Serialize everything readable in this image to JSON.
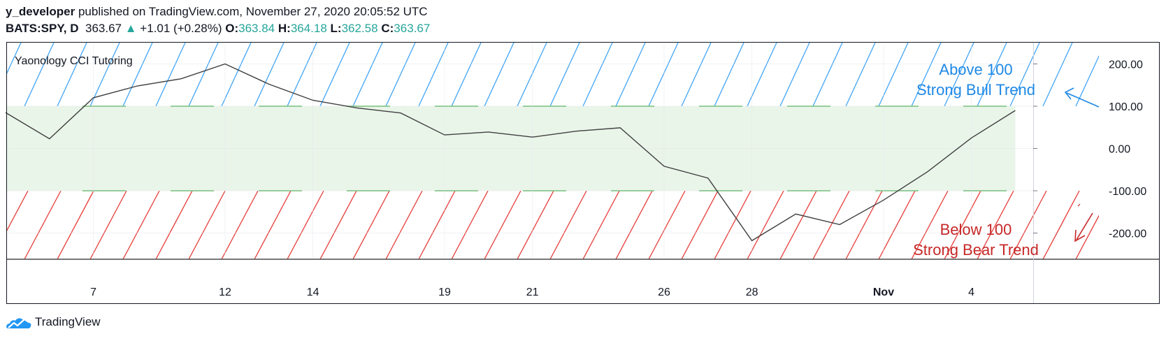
{
  "header": {
    "author": "y_developer",
    "published_text": "published on TradingView.com, November 27, 2020 20:05:52 UTC",
    "symbol": "BATS:SPY, D",
    "last": "363.67",
    "change_arrow": "▲",
    "change": "+1.01 (+0.28%)",
    "open_label": "O:",
    "open": "363.84",
    "high_label": "H:",
    "high": "364.18",
    "low_label": "L:",
    "low": "362.58",
    "close_label": "C:",
    "close": "363.67"
  },
  "brand": {
    "name": "TradingView",
    "logo_icon": "tradingview-logo-icon"
  },
  "colors": {
    "line": "#404040",
    "band_fill": "#eaf5ea",
    "band_line": "#4caf50",
    "upper_hatch": "#42a5f5",
    "lower_hatch": "#e53935",
    "bull_annotation": "#1e88e5",
    "bear_annotation": "#c62828"
  },
  "chart_data": {
    "type": "line",
    "title": "Yaonology CCI Tutoring",
    "x_tick_labels": [
      "7",
      "12",
      "14",
      "19",
      "21",
      "26",
      "28",
      "Nov",
      "4"
    ],
    "y_tick_labels": [
      "200.00",
      "100.00",
      "0.00",
      "-100.00",
      "-200.00"
    ],
    "ylim": [
      -260,
      250
    ],
    "levels": [
      100,
      -100
    ],
    "series": [
      {
        "x": [
          "Oct 5",
          "Oct 6",
          "Oct 7",
          "Oct 8",
          "Oct 9",
          "Oct 12",
          "Oct 13",
          "Oct 14",
          "Oct 15",
          "Oct 16",
          "Oct 19",
          "Oct 20",
          "Oct 21",
          "Oct 22",
          "Oct 23",
          "Oct 26",
          "Oct 27",
          "Oct 28",
          "Oct 29",
          "Oct 30",
          "Nov 2",
          "Nov 3",
          "Nov 4",
          "Nov 5"
        ],
        "values": [
          85,
          23,
          120,
          148,
          165,
          200,
          152,
          114,
          96,
          84,
          32,
          39,
          27,
          41,
          49,
          -42,
          -70,
          -218,
          -155,
          -180,
          -122,
          -55,
          25,
          90
        ]
      }
    ],
    "annotations": [
      {
        "text_lines": [
          "Above 100",
          "Strong Bull Trend"
        ],
        "color": "bull_annotation",
        "arrow": "up-left"
      },
      {
        "text_lines": [
          "Below 100",
          "Strong Bear Trend"
        ],
        "color": "bear_annotation",
        "arrow": "down-left"
      }
    ],
    "grid": true
  }
}
